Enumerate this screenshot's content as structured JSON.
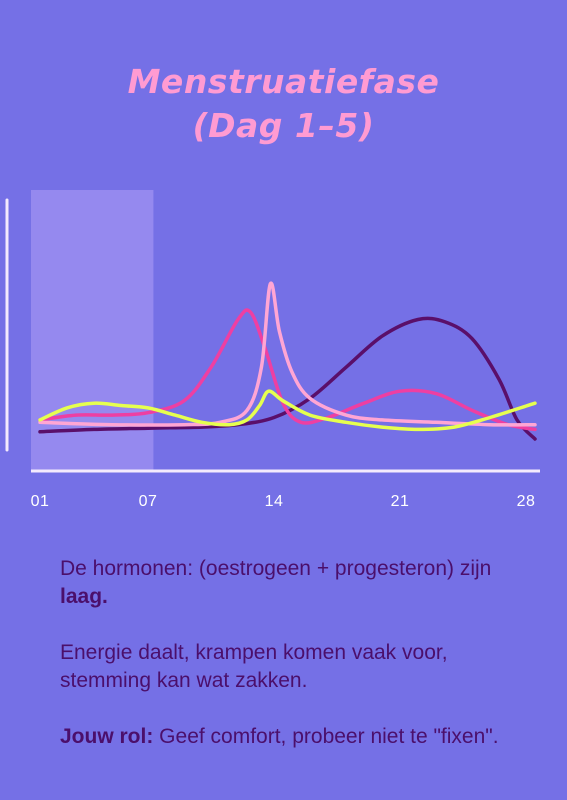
{
  "title": {
    "line1": "Menstruatiefase",
    "line2": "(Dag 1–5)"
  },
  "colors": {
    "background": "#7570e6",
    "title": "#ff9bd2",
    "text": "#4b0f6b",
    "axis": "#f4eafd",
    "highlight": "#9b8df0"
  },
  "chart_data": {
    "type": "line",
    "xlim": [
      1,
      28.5
    ],
    "ylim": [
      0,
      1
    ],
    "x_ticks": [
      {
        "value": 1,
        "label": "01"
      },
      {
        "value": 7,
        "label": "07"
      },
      {
        "value": 14,
        "label": "14"
      },
      {
        "value": 21,
        "label": "21"
      },
      {
        "value": 28,
        "label": "28"
      }
    ],
    "grid": false,
    "legend": "none",
    "highlight_range": [
      1,
      7.3
    ],
    "series": [
      {
        "color": "#5a0f6a",
        "x": [
          1,
          4,
          7,
          10,
          12,
          14,
          16,
          18,
          20,
          22,
          23.5,
          25,
          26.5,
          27.5,
          28.5
        ],
        "y": [
          0.03,
          0.04,
          0.045,
          0.05,
          0.06,
          0.09,
          0.17,
          0.3,
          0.43,
          0.5,
          0.49,
          0.42,
          0.25,
          0.08,
          0.0
        ]
      },
      {
        "color": "#ee3fa2",
        "x": [
          1,
          3,
          5,
          7,
          9,
          10.5,
          12,
          12.7,
          13.5,
          14.5,
          15.5,
          17,
          19,
          21,
          23,
          25,
          27,
          28.5
        ],
        "y": [
          0.08,
          0.1,
          0.1,
          0.11,
          0.16,
          0.3,
          0.5,
          0.53,
          0.38,
          0.15,
          0.07,
          0.09,
          0.15,
          0.2,
          0.19,
          0.12,
          0.06,
          0.04
        ]
      },
      {
        "color": "#ffa6d4",
        "x": [
          1,
          5,
          9,
          11,
          12.5,
          13.3,
          13.8,
          14.3,
          15,
          16,
          18,
          20,
          23,
          26,
          28.5
        ],
        "y": [
          0.07,
          0.06,
          0.06,
          0.07,
          0.12,
          0.3,
          0.65,
          0.45,
          0.28,
          0.17,
          0.1,
          0.08,
          0.07,
          0.06,
          0.06
        ]
      },
      {
        "color": "#e6ff4f",
        "x": [
          1,
          2.5,
          4,
          5.5,
          7,
          8.5,
          10,
          11.5,
          12.5,
          13.2,
          13.7,
          14.5,
          16,
          18,
          20,
          22,
          24,
          26,
          28.5
        ],
        "y": [
          0.08,
          0.13,
          0.15,
          0.14,
          0.13,
          0.1,
          0.07,
          0.06,
          0.08,
          0.14,
          0.2,
          0.16,
          0.1,
          0.07,
          0.05,
          0.04,
          0.05,
          0.09,
          0.15
        ]
      }
    ]
  },
  "text": {
    "p1_before": "De hormonen: (oestrogeen + progesteron) zijn ",
    "p1_bold": "laag.",
    "p2": "Energie daalt, krampen komen vaak voor, stemming kan wat zakken.",
    "p3_bold": "Jouw rol:",
    "p3_after": " Geef comfort, probeer niet te \"fixen\"."
  }
}
